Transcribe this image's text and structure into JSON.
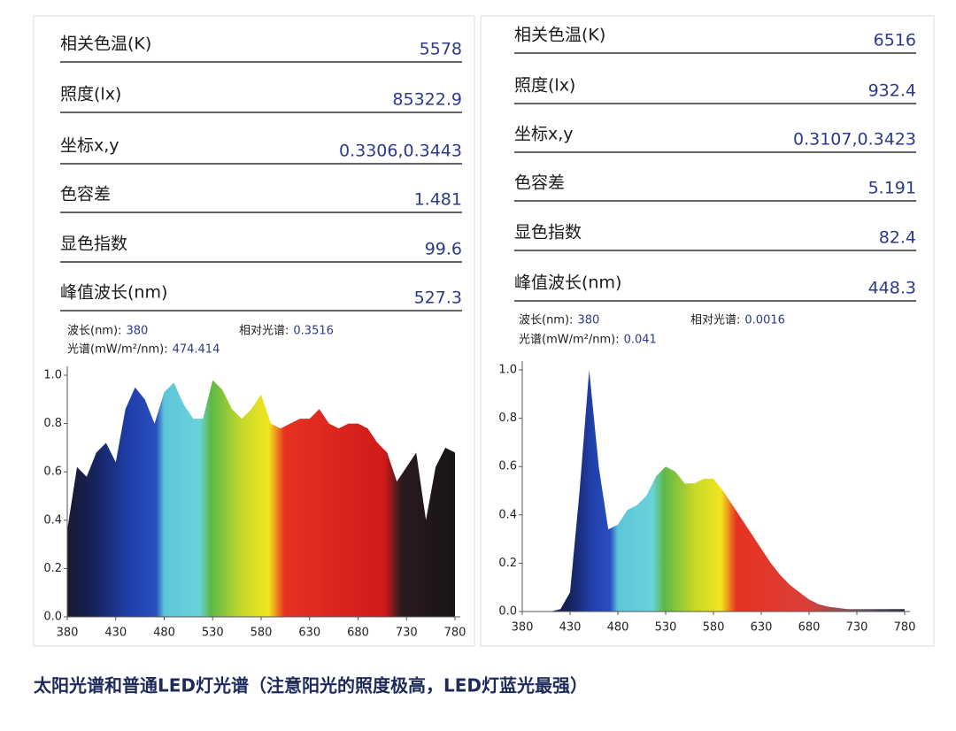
{
  "caption": "太阳光谱和普通LED灯光谱（注意阳光的照度极高，LED灯蓝光最强）",
  "panels": [
    {
      "measurements": [
        {
          "label": "相关色温(K)",
          "value": 5578
        },
        {
          "label": "照度(lx)",
          "value": 85322.9
        },
        {
          "label": "坐标x,y",
          "value": "0.3306,0.3443"
        },
        {
          "label": "色容差",
          "value": 1.481
        },
        {
          "label": "显色指数",
          "value": 99.6
        },
        {
          "label": "峰值波长(nm)",
          "value": 527.3
        }
      ],
      "readout": [
        {
          "label": "波长(nm):",
          "value": 380
        },
        {
          "label": "相对光谱:",
          "value": 0.3516
        },
        {
          "label": "光谱(mW/m²/nm):",
          "value": 474.414
        }
      ]
    },
    {
      "measurements": [
        {
          "label": "相关色温(K)",
          "value": 6516
        },
        {
          "label": "照度(lx)",
          "value": 932.4
        },
        {
          "label": "坐标x,y",
          "value": "0.3107,0.3423"
        },
        {
          "label": "色容差",
          "value": 5.191
        },
        {
          "label": "显色指数",
          "value": 82.4
        },
        {
          "label": "峰值波长(nm)",
          "value": 448.3
        }
      ],
      "readout": [
        {
          "label": "波长(nm):",
          "value": 380
        },
        {
          "label": "相对光谱:",
          "value": 0.0016
        },
        {
          "label": "光谱(mW/m²/nm):",
          "value": 0.041
        }
      ]
    }
  ],
  "chart_data": [
    {
      "type": "area",
      "x": [
        380,
        390,
        400,
        410,
        420,
        430,
        440,
        450,
        460,
        470,
        480,
        490,
        500,
        510,
        520,
        530,
        540,
        550,
        560,
        570,
        580,
        590,
        600,
        610,
        620,
        630,
        640,
        650,
        660,
        670,
        680,
        690,
        700,
        710,
        720,
        730,
        740,
        750,
        760,
        770,
        780
      ],
      "values": [
        0.36,
        0.62,
        0.58,
        0.68,
        0.72,
        0.64,
        0.86,
        0.95,
        0.9,
        0.8,
        0.93,
        0.97,
        0.88,
        0.82,
        0.82,
        0.98,
        0.94,
        0.86,
        0.82,
        0.86,
        0.92,
        0.8,
        0.78,
        0.8,
        0.82,
        0.82,
        0.86,
        0.8,
        0.78,
        0.8,
        0.8,
        0.78,
        0.72,
        0.68,
        0.56,
        0.62,
        0.68,
        0.4,
        0.62,
        0.7,
        0.68
      ],
      "xlim": [
        380,
        780
      ],
      "ylim": [
        0,
        1
      ],
      "xticks": [
        380,
        430,
        480,
        530,
        580,
        630,
        680,
        730,
        780
      ],
      "yticks": [
        {
          "value": 0,
          "label": "0.0"
        },
        0.2,
        0.4,
        0.6,
        0.8,
        {
          "value": 1,
          "label": "1.0"
        }
      ]
    },
    {
      "type": "area",
      "x": [
        380,
        390,
        400,
        410,
        420,
        430,
        440,
        450,
        460,
        470,
        480,
        490,
        500,
        510,
        520,
        530,
        540,
        550,
        560,
        570,
        580,
        590,
        600,
        610,
        620,
        630,
        640,
        650,
        660,
        670,
        680,
        690,
        700,
        710,
        720,
        730,
        740,
        750,
        760,
        770,
        780
      ],
      "values": [
        0,
        0,
        0,
        0,
        0.01,
        0.08,
        0.5,
        1.0,
        0.6,
        0.34,
        0.36,
        0.42,
        0.44,
        0.48,
        0.56,
        0.6,
        0.58,
        0.53,
        0.53,
        0.55,
        0.55,
        0.5,
        0.44,
        0.38,
        0.32,
        0.26,
        0.2,
        0.15,
        0.11,
        0.08,
        0.05,
        0.03,
        0.02,
        0.015,
        0.01,
        0.01,
        0.01,
        0.01,
        0.01,
        0.01,
        0.01
      ],
      "xlim": [
        380,
        780
      ],
      "ylim": [
        0,
        1
      ],
      "xticks": [
        380,
        430,
        480,
        530,
        580,
        630,
        680,
        730,
        780
      ],
      "yticks": [
        {
          "value": 0,
          "label": "0.0"
        },
        0.2,
        0.4,
        0.6,
        0.8,
        {
          "value": 1,
          "label": "1.0"
        }
      ]
    }
  ]
}
